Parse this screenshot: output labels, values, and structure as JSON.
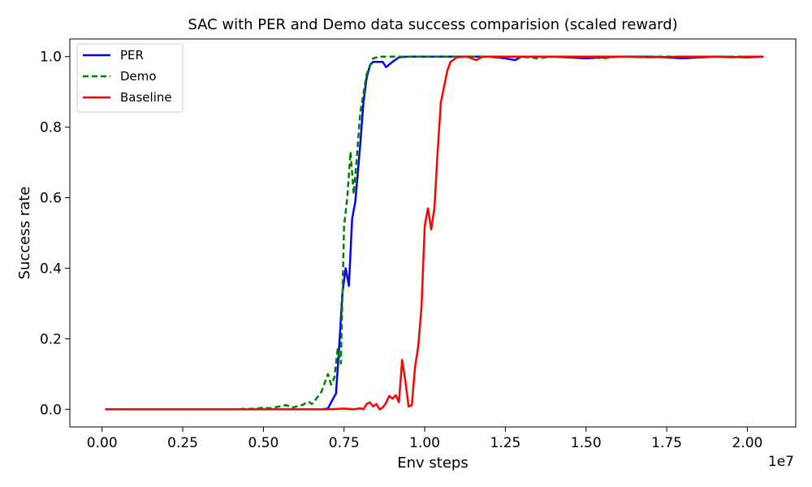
{
  "chart_data": {
    "type": "line",
    "title": "SAC with PER and Demo data success comparision (scaled reward)",
    "xlabel": "Env steps",
    "ylabel": "Success rate",
    "x_offset_label": "1e7",
    "xlim": [
      -0.1,
      2.15
    ],
    "ylim": [
      -0.05,
      1.05
    ],
    "xticks": [
      0.0,
      0.25,
      0.5,
      0.75,
      1.0,
      1.25,
      1.5,
      1.75,
      2.0
    ],
    "xtick_labels": [
      "0.00",
      "0.25",
      "0.50",
      "0.75",
      "1.00",
      "1.25",
      "1.50",
      "1.75",
      "2.00"
    ],
    "yticks": [
      0.0,
      0.2,
      0.4,
      0.6,
      0.8,
      1.0
    ],
    "ytick_labels": [
      "0.0",
      "0.2",
      "0.4",
      "0.6",
      "0.8",
      "1.0"
    ],
    "grid": false,
    "legend_position": "top-left",
    "series": [
      {
        "name": "PER",
        "color": "#0000ff",
        "dash": "solid",
        "points": [
          [
            0.01,
            0.0
          ],
          [
            0.1,
            0.0
          ],
          [
            0.2,
            0.0
          ],
          [
            0.3,
            0.0
          ],
          [
            0.4,
            0.0
          ],
          [
            0.5,
            0.0
          ],
          [
            0.6,
            0.0
          ],
          [
            0.68,
            0.0
          ],
          [
            0.7,
            0.002
          ],
          [
            0.71,
            0.02
          ],
          [
            0.725,
            0.045
          ],
          [
            0.735,
            0.18
          ],
          [
            0.745,
            0.33
          ],
          [
            0.755,
            0.4
          ],
          [
            0.765,
            0.35
          ],
          [
            0.775,
            0.54
          ],
          [
            0.785,
            0.59
          ],
          [
            0.8,
            0.75
          ],
          [
            0.81,
            0.87
          ],
          [
            0.82,
            0.94
          ],
          [
            0.83,
            0.975
          ],
          [
            0.84,
            0.985
          ],
          [
            0.86,
            0.985
          ],
          [
            0.87,
            0.985
          ],
          [
            0.88,
            0.97
          ],
          [
            0.9,
            0.985
          ],
          [
            0.92,
            0.998
          ],
          [
            0.95,
            1.0
          ],
          [
            1.0,
            1.0
          ],
          [
            1.1,
            1.0
          ],
          [
            1.2,
            1.0
          ],
          [
            1.25,
            0.995
          ],
          [
            1.28,
            0.99
          ],
          [
            1.3,
            1.0
          ],
          [
            1.4,
            1.0
          ],
          [
            1.5,
            0.995
          ],
          [
            1.6,
            1.0
          ],
          [
            1.7,
            1.0
          ],
          [
            1.8,
            0.995
          ],
          [
            1.9,
            1.0
          ],
          [
            2.0,
            0.998
          ],
          [
            2.05,
            1.0
          ]
        ]
      },
      {
        "name": "Demo",
        "color": "#008000",
        "dash": "dashed",
        "points": [
          [
            0.01,
            0.0
          ],
          [
            0.1,
            0.0
          ],
          [
            0.2,
            0.0
          ],
          [
            0.3,
            0.0
          ],
          [
            0.4,
            0.0
          ],
          [
            0.48,
            0.002
          ],
          [
            0.5,
            0.005
          ],
          [
            0.52,
            0.003
          ],
          [
            0.55,
            0.008
          ],
          [
            0.57,
            0.012
          ],
          [
            0.59,
            0.005
          ],
          [
            0.62,
            0.012
          ],
          [
            0.64,
            0.022
          ],
          [
            0.65,
            0.015
          ],
          [
            0.66,
            0.025
          ],
          [
            0.68,
            0.05
          ],
          [
            0.7,
            0.1
          ],
          [
            0.71,
            0.07
          ],
          [
            0.72,
            0.09
          ],
          [
            0.73,
            0.17
          ],
          [
            0.74,
            0.13
          ],
          [
            0.75,
            0.52
          ],
          [
            0.76,
            0.6
          ],
          [
            0.77,
            0.73
          ],
          [
            0.78,
            0.61
          ],
          [
            0.79,
            0.72
          ],
          [
            0.8,
            0.84
          ],
          [
            0.82,
            0.95
          ],
          [
            0.84,
            0.995
          ],
          [
            0.86,
            1.0
          ],
          [
            0.9,
            1.0
          ],
          [
            1.0,
            1.0
          ],
          [
            1.1,
            1.0
          ],
          [
            1.2,
            1.0
          ],
          [
            1.3,
            1.0
          ],
          [
            1.35,
            0.995
          ],
          [
            1.4,
            1.0
          ],
          [
            1.5,
            1.0
          ],
          [
            1.55,
            0.995
          ],
          [
            1.6,
            1.0
          ],
          [
            1.7,
            1.0
          ],
          [
            1.8,
            1.0
          ],
          [
            1.9,
            1.0
          ],
          [
            2.0,
            1.0
          ],
          [
            2.05,
            1.0
          ]
        ]
      },
      {
        "name": "Baseline",
        "color": "#ff0000",
        "dash": "solid",
        "points": [
          [
            0.01,
            0.0
          ],
          [
            0.1,
            0.0
          ],
          [
            0.2,
            0.0
          ],
          [
            0.3,
            0.0
          ],
          [
            0.4,
            0.0
          ],
          [
            0.5,
            0.0
          ],
          [
            0.6,
            0.0
          ],
          [
            0.7,
            0.0
          ],
          [
            0.75,
            0.002
          ],
          [
            0.78,
            0.0
          ],
          [
            0.8,
            0.003
          ],
          [
            0.81,
            0.0
          ],
          [
            0.82,
            0.015
          ],
          [
            0.83,
            0.02
          ],
          [
            0.84,
            0.008
          ],
          [
            0.85,
            0.015
          ],
          [
            0.86,
            0.0
          ],
          [
            0.87,
            0.005
          ],
          [
            0.88,
            0.018
          ],
          [
            0.89,
            0.038
          ],
          [
            0.9,
            0.03
          ],
          [
            0.91,
            0.04
          ],
          [
            0.92,
            0.02
          ],
          [
            0.93,
            0.14
          ],
          [
            0.94,
            0.08
          ],
          [
            0.95,
            0.008
          ],
          [
            0.96,
            0.012
          ],
          [
            0.97,
            0.12
          ],
          [
            0.98,
            0.18
          ],
          [
            0.99,
            0.29
          ],
          [
            1.0,
            0.52
          ],
          [
            1.01,
            0.57
          ],
          [
            1.02,
            0.51
          ],
          [
            1.03,
            0.57
          ],
          [
            1.04,
            0.73
          ],
          [
            1.05,
            0.87
          ],
          [
            1.07,
            0.96
          ],
          [
            1.08,
            0.985
          ],
          [
            1.1,
            0.998
          ],
          [
            1.13,
            1.0
          ],
          [
            1.16,
            0.99
          ],
          [
            1.18,
            1.0
          ],
          [
            1.2,
            1.0
          ],
          [
            1.3,
            1.0
          ],
          [
            1.4,
            1.0
          ],
          [
            1.5,
            1.0
          ],
          [
            1.6,
            1.0
          ],
          [
            1.7,
            0.998
          ],
          [
            1.8,
            1.0
          ],
          [
            1.9,
            1.0
          ],
          [
            1.95,
            0.998
          ],
          [
            2.0,
            1.0
          ],
          [
            2.05,
            1.0
          ]
        ]
      }
    ]
  }
}
